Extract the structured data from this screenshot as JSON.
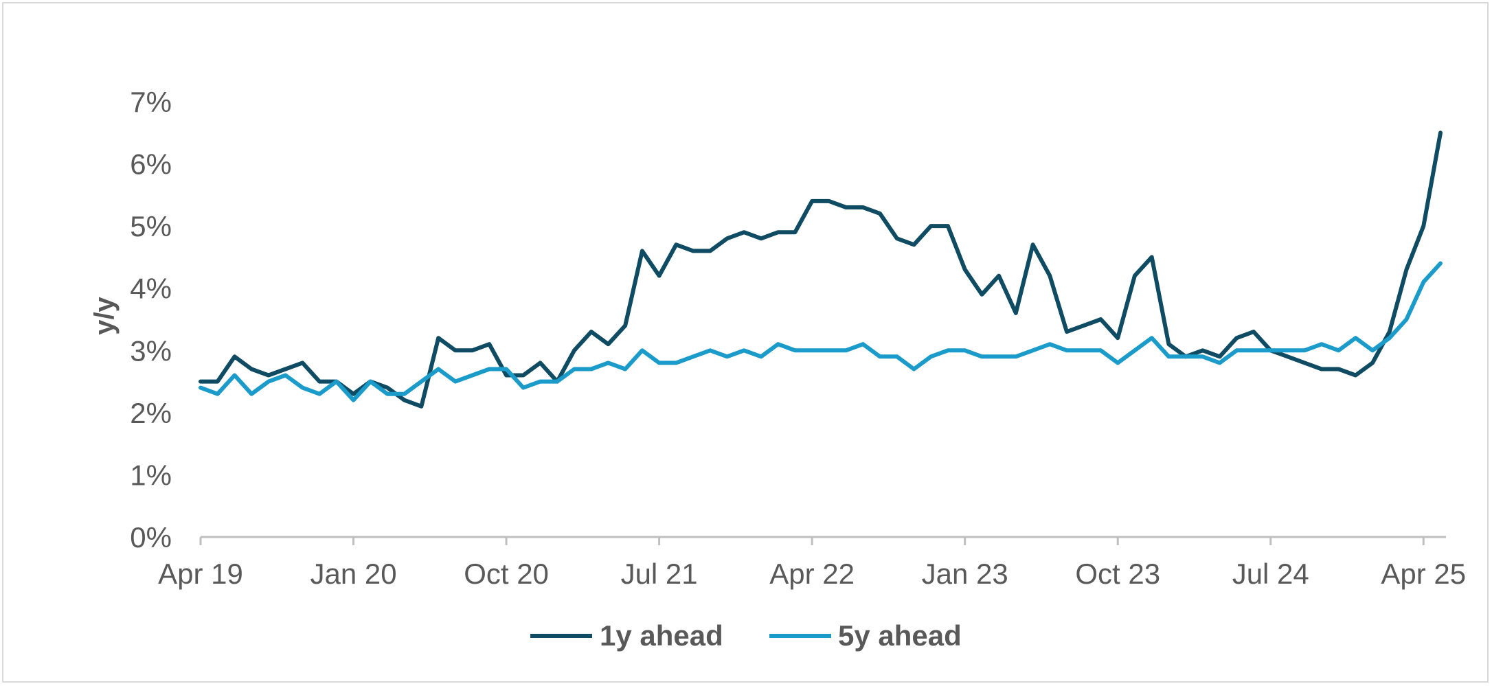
{
  "chart_data": {
    "type": "line",
    "ylabel": "y/y",
    "xlabel": "",
    "ylim": [
      0,
      7
    ],
    "y_ticks": [
      "0%",
      "1%",
      "2%",
      "3%",
      "4%",
      "5%",
      "6%",
      "7%"
    ],
    "x_tick_labels": [
      "Apr 19",
      "Jan 20",
      "Oct 20",
      "Jul 21",
      "Apr 22",
      "Jan 23",
      "Oct 23",
      "Jul 24",
      "Apr 25"
    ],
    "x_start": "Apr 19",
    "x_end": "May 25",
    "grid": false,
    "legend_position": "bottom-center",
    "series": [
      {
        "name": "1y ahead",
        "color": "#0f4c63",
        "values": [
          2.5,
          2.5,
          2.9,
          2.7,
          2.6,
          2.7,
          2.8,
          2.5,
          2.5,
          2.3,
          2.5,
          2.4,
          2.2,
          2.1,
          3.2,
          3.0,
          3.0,
          3.1,
          2.6,
          2.6,
          2.8,
          2.5,
          3.0,
          3.3,
          3.1,
          3.4,
          4.6,
          4.2,
          4.7,
          4.6,
          4.6,
          4.8,
          4.9,
          4.8,
          4.9,
          4.9,
          5.4,
          5.4,
          5.3,
          5.3,
          5.2,
          4.8,
          4.7,
          5.0,
          5.0,
          4.3,
          3.9,
          4.2,
          3.6,
          4.7,
          4.2,
          3.3,
          3.4,
          3.5,
          3.2,
          4.2,
          4.5,
          3.1,
          2.9,
          3.0,
          2.9,
          3.2,
          3.3,
          3.0,
          2.9,
          2.8,
          2.7,
          2.7,
          2.6,
          2.8,
          3.3,
          4.3,
          5.0,
          6.5
        ]
      },
      {
        "name": "5y ahead",
        "color": "#1a9bc9",
        "values": [
          2.4,
          2.3,
          2.6,
          2.3,
          2.5,
          2.6,
          2.4,
          2.3,
          2.5,
          2.2,
          2.5,
          2.3,
          2.3,
          2.5,
          2.7,
          2.5,
          2.6,
          2.7,
          2.7,
          2.4,
          2.5,
          2.5,
          2.7,
          2.7,
          2.8,
          2.7,
          3.0,
          2.8,
          2.8,
          2.9,
          3.0,
          2.9,
          3.0,
          2.9,
          3.1,
          3.0,
          3.0,
          3.0,
          3.0,
          3.1,
          2.9,
          2.9,
          2.7,
          2.9,
          3.0,
          3.0,
          2.9,
          2.9,
          2.9,
          3.0,
          3.1,
          3.0,
          3.0,
          3.0,
          2.8,
          3.0,
          3.2,
          2.9,
          2.9,
          2.9,
          2.8,
          3.0,
          3.0,
          3.0,
          3.0,
          3.0,
          3.1,
          3.0,
          3.2,
          3.0,
          3.2,
          3.5,
          4.1,
          4.4
        ]
      }
    ]
  }
}
